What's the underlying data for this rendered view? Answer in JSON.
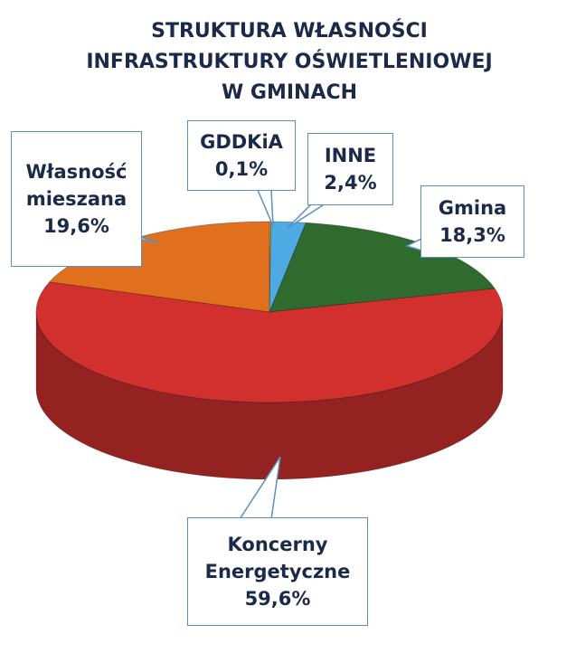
{
  "chart_data": {
    "type": "pie3d",
    "title": "STRUKTURA WŁASNOŚCI INFRASTRUKTURY OŚWIETLENIOWEJ W GMINACH",
    "categories": [
      "GDDKiA",
      "INNE",
      "Gmina",
      "Koncerny Energetyczne",
      "Własność mieszana"
    ],
    "values": [
      0.1,
      2.4,
      18.3,
      59.6,
      19.6
    ],
    "value_labels": [
      "0,1%",
      "2,4%",
      "18,3%",
      "59,6%",
      "19,6%"
    ],
    "colors": [
      "#f2c318",
      "#4fa9e2",
      "#2f6a2e",
      "#d2302e",
      "#e0701e"
    ]
  }
}
